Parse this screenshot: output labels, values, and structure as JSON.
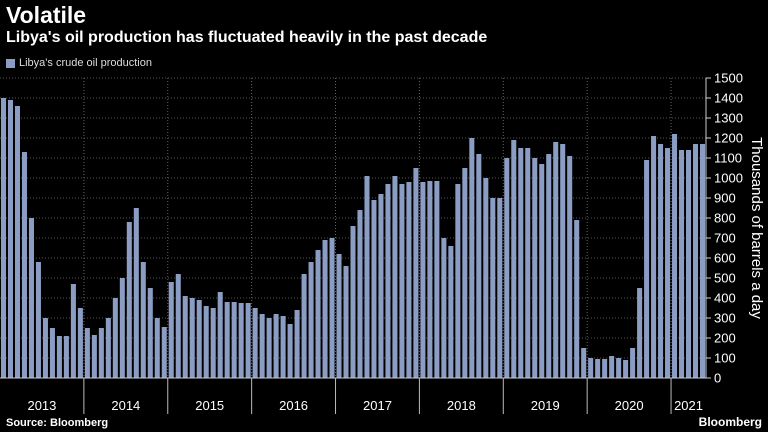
{
  "title": "Volatile",
  "subtitle": "Libya's oil production has fluctuated heavily in the past decade",
  "source": "Source: Bloomberg",
  "brand": "Bloomberg",
  "chart_data": {
    "type": "bar",
    "series": [
      {
        "name": "Libya's crude oil production",
        "color": "#8b9dc3",
        "values": [
          1400,
          1390,
          1360,
          1130,
          800,
          580,
          300,
          250,
          210,
          210,
          470,
          350,
          250,
          215,
          250,
          300,
          400,
          500,
          780,
          850,
          580,
          450,
          300,
          255,
          480,
          520,
          410,
          400,
          390,
          360,
          350,
          430,
          380,
          380,
          375,
          375,
          350,
          320,
          300,
          320,
          310,
          270,
          340,
          520,
          580,
          640,
          690,
          700,
          620,
          560,
          760,
          840,
          1010,
          890,
          920,
          970,
          1010,
          970,
          980,
          1050,
          980,
          985,
          985,
          700,
          660,
          970,
          1050,
          1200,
          1120,
          1000,
          900,
          900,
          1100,
          1190,
          1150,
          1150,
          1100,
          1070,
          1120,
          1180,
          1170,
          1110,
          790,
          150,
          100,
          95,
          95,
          110,
          100,
          90,
          150,
          450,
          1090,
          1210,
          1170,
          1150,
          1220,
          1140,
          1140,
          1170,
          1170
        ]
      }
    ],
    "x_labels": [
      "2013",
      "2014",
      "2015",
      "2016",
      "2017",
      "2018",
      "2019",
      "2020",
      "2021"
    ],
    "ylabel": "Thousands of barrels a day",
    "ylim": [
      0,
      1500
    ],
    "yticks": [
      0,
      100,
      200,
      300,
      400,
      500,
      600,
      700,
      800,
      900,
      1000,
      1100,
      1200,
      1300,
      1400,
      1500
    ],
    "grid": true,
    "legend_position": "top-left"
  }
}
